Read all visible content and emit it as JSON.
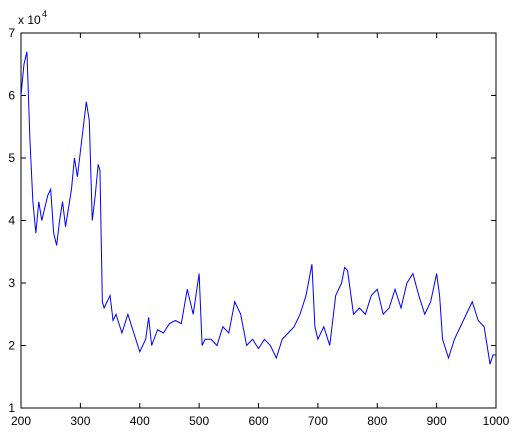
{
  "chart_data": {
    "type": "line",
    "y_multiplier": {
      "base": "x 10",
      "exponent": "4"
    },
    "x": [
      200,
      205,
      210,
      215,
      220,
      225,
      230,
      235,
      240,
      245,
      250,
      255,
      260,
      265,
      270,
      275,
      280,
      285,
      290,
      295,
      300,
      305,
      310,
      315,
      320,
      325,
      330,
      333,
      337,
      340,
      350,
      355,
      360,
      370,
      380,
      390,
      400,
      410,
      415,
      420,
      430,
      440,
      450,
      460,
      470,
      480,
      485,
      490,
      500,
      505,
      510,
      520,
      530,
      540,
      550,
      560,
      570,
      580,
      590,
      600,
      610,
      620,
      630,
      640,
      650,
      660,
      670,
      680,
      690,
      695,
      700,
      710,
      720,
      730,
      740,
      745,
      750,
      760,
      770,
      780,
      790,
      800,
      810,
      820,
      830,
      840,
      850,
      860,
      870,
      880,
      890,
      900,
      905,
      910,
      920,
      930,
      940,
      950,
      960,
      970,
      980,
      990,
      995,
      1000
    ],
    "series": [
      {
        "color": "#0000ff",
        "values": [
          6.0,
          6.5,
          6.7,
          5.3,
          4.3,
          3.8,
          4.3,
          4.0,
          4.2,
          4.4,
          4.5,
          3.8,
          3.6,
          4.0,
          4.3,
          3.9,
          4.2,
          4.5,
          5.0,
          4.7,
          5.1,
          5.5,
          5.9,
          5.6,
          4.0,
          4.4,
          4.9,
          4.8,
          2.7,
          2.6,
          2.8,
          2.4,
          2.5,
          2.2,
          2.5,
          2.2,
          1.9,
          2.1,
          2.45,
          2.0,
          2.25,
          2.2,
          2.35,
          2.4,
          2.35,
          2.9,
          2.7,
          2.5,
          3.15,
          2.0,
          2.1,
          2.1,
          2.0,
          2.3,
          2.2,
          2.7,
          2.5,
          2.0,
          2.1,
          1.95,
          2.1,
          2.0,
          1.8,
          2.1,
          2.2,
          2.3,
          2.5,
          2.8,
          3.3,
          2.3,
          2.1,
          2.3,
          2.0,
          2.8,
          3.0,
          3.25,
          3.2,
          2.5,
          2.6,
          2.5,
          2.8,
          2.9,
          2.5,
          2.6,
          2.9,
          2.6,
          3.0,
          3.15,
          2.8,
          2.5,
          2.7,
          3.15,
          2.8,
          2.1,
          1.8,
          2.1,
          2.3,
          2.5,
          2.7,
          2.4,
          2.3,
          1.7,
          1.85,
          1.85
        ]
      }
    ],
    "xlim": [
      200,
      1000
    ],
    "xticks": [
      200,
      300,
      400,
      500,
      600,
      700,
      800,
      900,
      1000
    ],
    "ylim": [
      1,
      7
    ],
    "yticks": [
      1,
      2,
      3,
      4,
      5,
      6,
      7
    ],
    "grid": false
  }
}
